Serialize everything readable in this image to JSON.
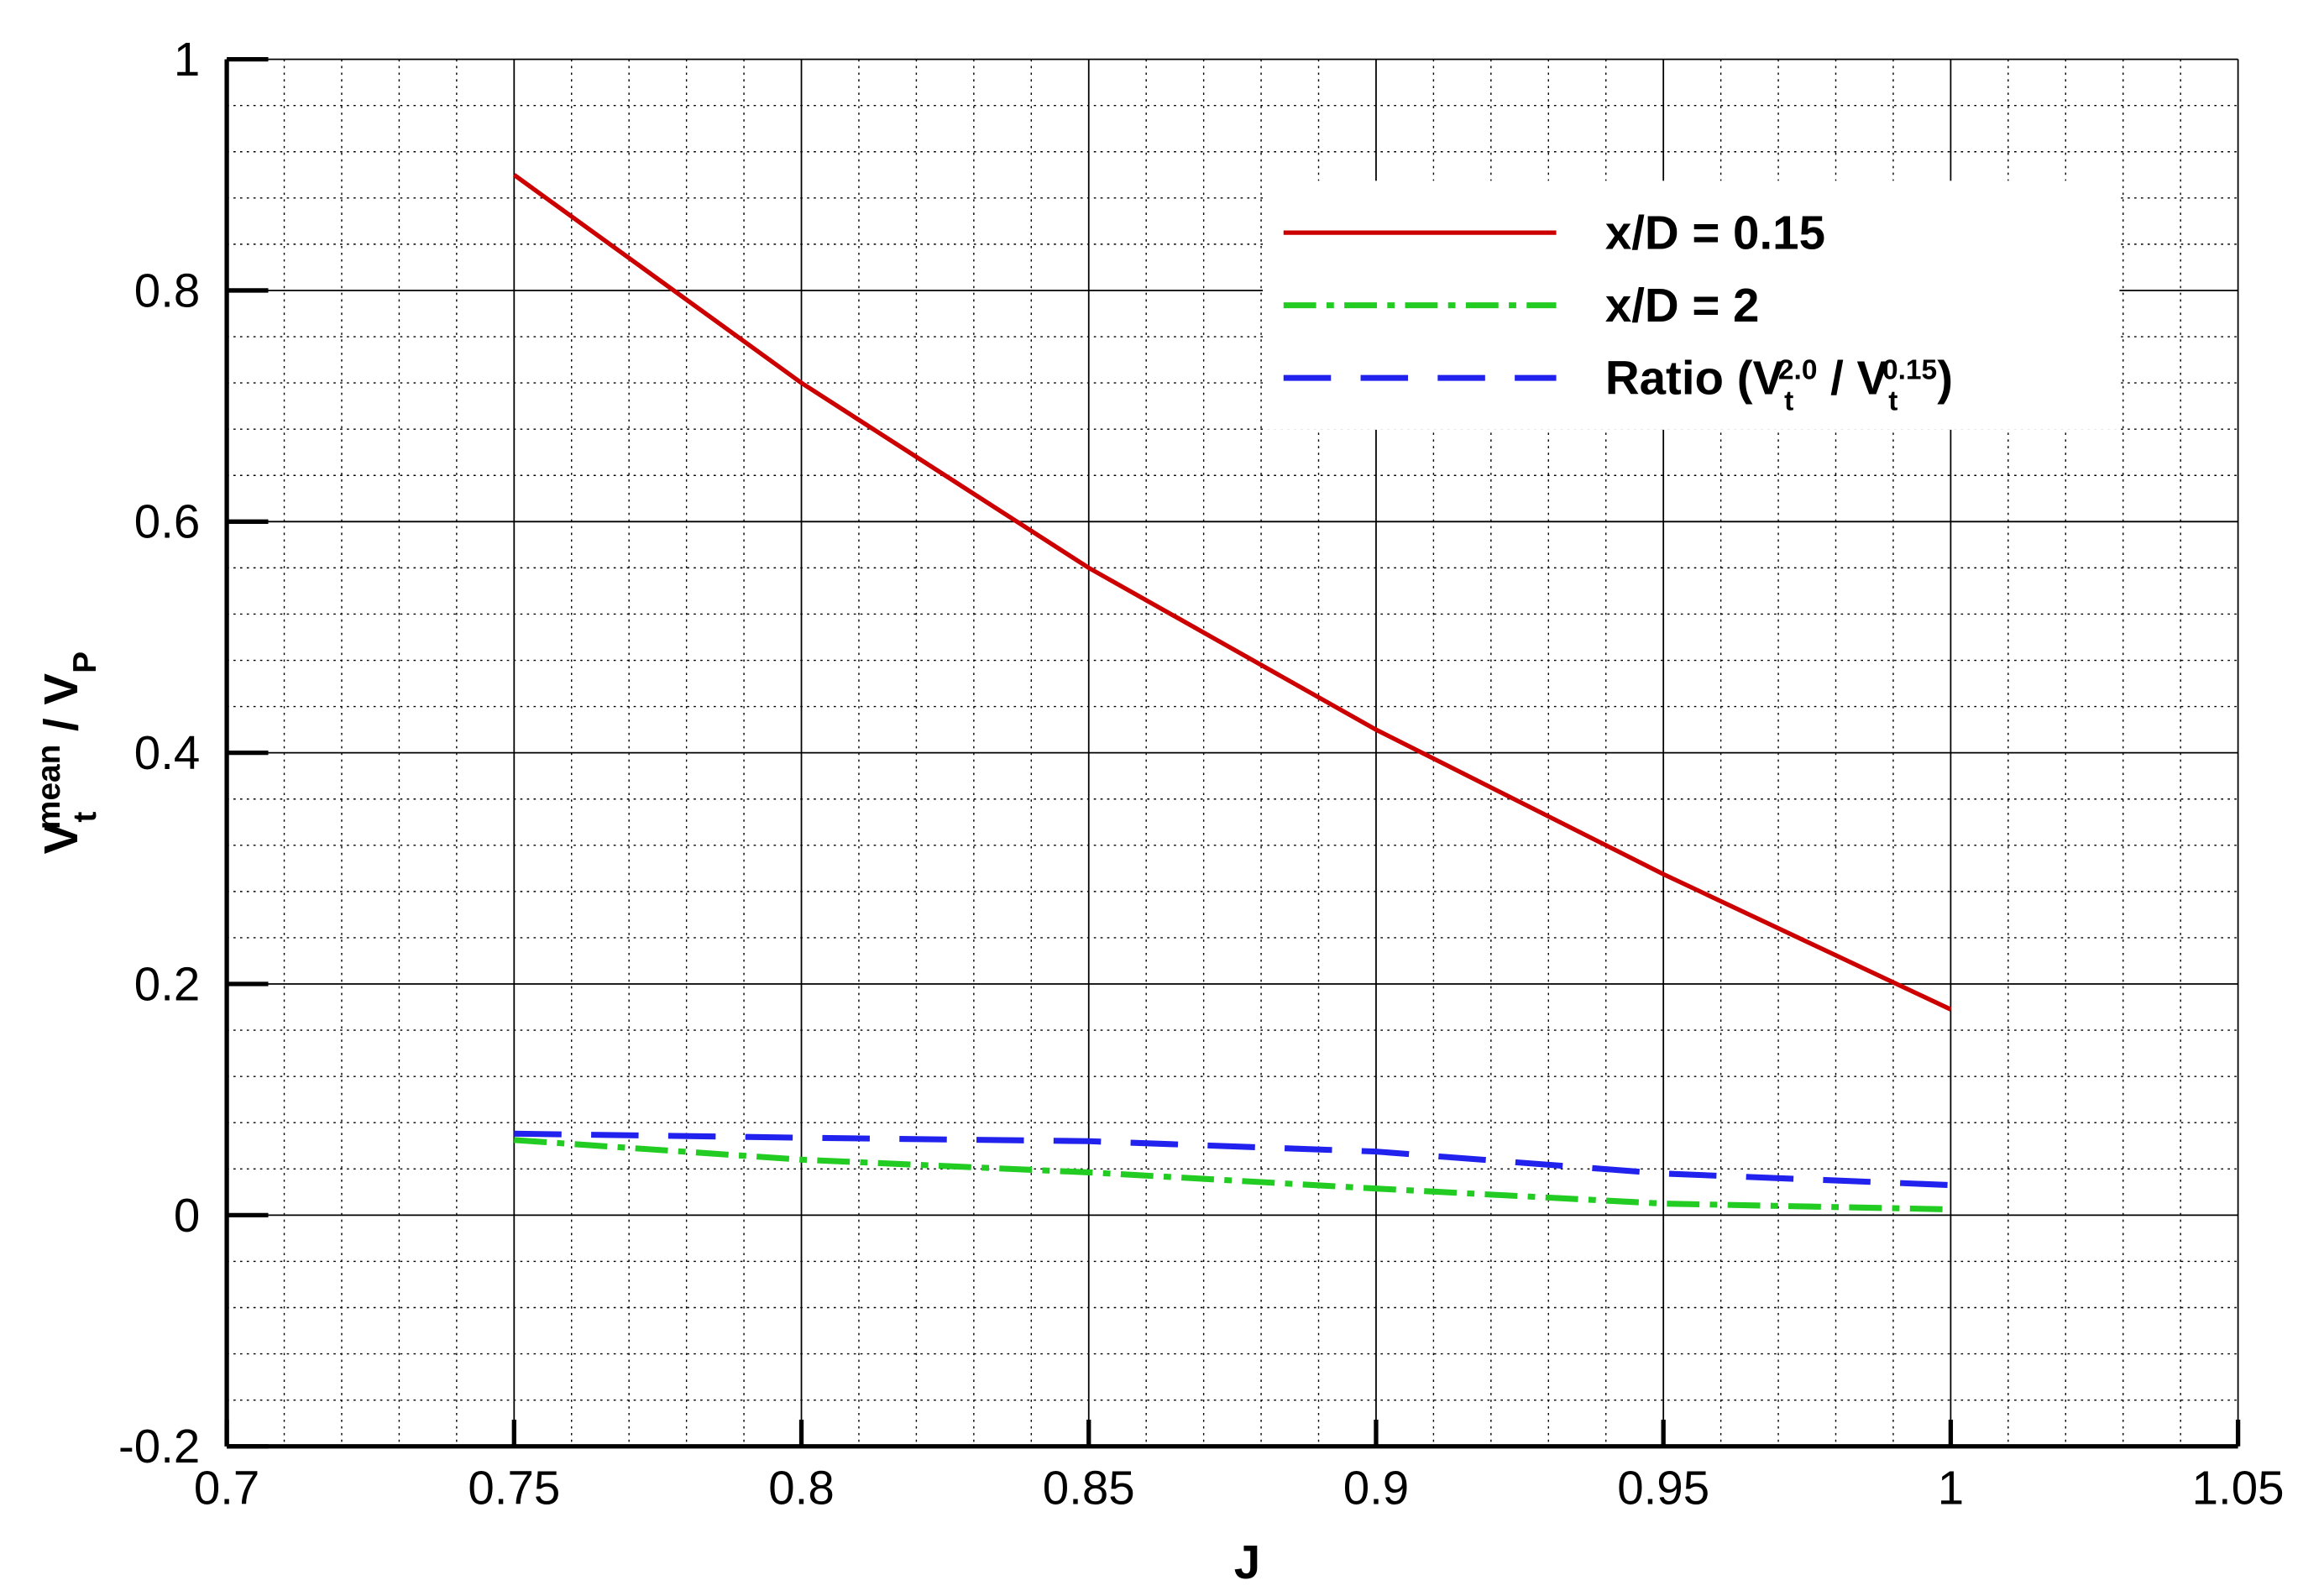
{
  "chart_data": {
    "type": "line",
    "xlabel": "J",
    "ylabel": [
      {
        "text": "V"
      },
      {
        "text": "t",
        "script": "sub"
      },
      {
        "text": "mean",
        "script": "sup"
      },
      {
        "text": " / V"
      },
      {
        "text": "P",
        "script": "sub"
      }
    ],
    "x": [
      0.75,
      0.8,
      0.85,
      0.9,
      0.95,
      1
    ],
    "series": [
      {
        "name": [
          {
            "text": "x/D = 0.15"
          }
        ],
        "color": "#cc0000",
        "style": "solid",
        "values": [
          0.9,
          0.72,
          0.56,
          0.42,
          0.295,
          0.178
        ]
      },
      {
        "name": [
          {
            "text": "x/D = 2"
          }
        ],
        "color": "#22cc22",
        "style": "dashdot",
        "values": [
          0.065,
          0.048,
          0.037,
          0.023,
          0.01,
          0.005
        ]
      },
      {
        "name": [
          {
            "text": "Ratio (V"
          },
          {
            "text": "t",
            "script": "sub"
          },
          {
            "text": "2.0",
            "script": "sup"
          },
          {
            "text": " / V"
          },
          {
            "text": "t",
            "script": "sub"
          },
          {
            "text": "0.15",
            "script": "sup"
          },
          {
            "text": ")"
          }
        ],
        "color": "#2222ee",
        "style": "dashed",
        "values": [
          0.0705,
          0.067,
          0.064,
          0.055,
          0.036,
          0.026
        ]
      }
    ],
    "xlim": [
      0.7,
      1.05
    ],
    "ylim": [
      -0.2,
      1
    ],
    "xticks": [
      0.7,
      0.75,
      0.8,
      0.85,
      0.9,
      0.95,
      1,
      1.05
    ],
    "yticks": [
      -0.2,
      0,
      0.2,
      0.4,
      0.6,
      0.8,
      1
    ],
    "grid": true,
    "minor_grid": true,
    "legend": "upper right"
  }
}
